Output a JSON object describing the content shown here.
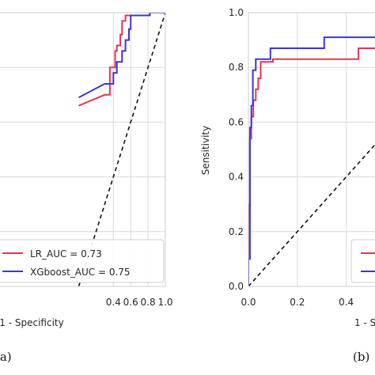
{
  "chart_data": [
    {
      "panel_label": "(a)",
      "type": "line",
      "xlabel": "1 - Specificity",
      "ylabel": "",
      "xlim": [
        -1.0,
        1.0
      ],
      "ylim": [
        0.0,
        1.0
      ],
      "x_ticks": [
        0.4,
        0.6,
        0.8,
        1.0
      ],
      "x_tick_labels": [
        "0.4",
        "0.6",
        "0.8",
        "1.0"
      ],
      "y_ticks": [],
      "grid": true,
      "legend_position": "lower-right",
      "series": [
        {
          "name": "LR_AUC = 0.73",
          "color": "#e8344e",
          "points": [
            [
              0.0,
              0.66
            ],
            [
              0.3,
              0.7
            ],
            [
              0.36,
              0.7
            ],
            [
              0.36,
              0.8
            ],
            [
              0.42,
              0.8
            ],
            [
              0.42,
              0.86
            ],
            [
              0.44,
              0.86
            ],
            [
              0.44,
              0.88
            ],
            [
              0.48,
              0.88
            ],
            [
              0.48,
              0.92
            ],
            [
              0.5,
              0.92
            ],
            [
              0.5,
              0.97
            ],
            [
              0.54,
              0.97
            ],
            [
              0.54,
              0.99
            ],
            [
              0.82,
              0.99
            ],
            [
              0.82,
              1.0
            ],
            [
              1.0,
              1.0
            ]
          ]
        },
        {
          "name": "XGboost_AUC = 0.75",
          "color": "#3a36d6",
          "points": [
            [
              0.0,
              0.69
            ],
            [
              0.3,
              0.74
            ],
            [
              0.4,
              0.74
            ],
            [
              0.4,
              0.78
            ],
            [
              0.44,
              0.78
            ],
            [
              0.44,
              0.82
            ],
            [
              0.5,
              0.82
            ],
            [
              0.5,
              0.86
            ],
            [
              0.54,
              0.86
            ],
            [
              0.54,
              0.9
            ],
            [
              0.58,
              0.9
            ],
            [
              0.58,
              0.94
            ],
            [
              0.6,
              0.94
            ],
            [
              0.6,
              0.99
            ],
            [
              0.82,
              0.99
            ],
            [
              0.82,
              1.0
            ],
            [
              1.0,
              1.0
            ]
          ]
        }
      ],
      "diagonal": {
        "style": "dashed",
        "color": "#111111",
        "points": [
          [
            0.0,
            0.0
          ],
          [
            1.0,
            1.0
          ]
        ]
      }
    },
    {
      "panel_label": "(b)",
      "type": "line",
      "xlabel": "1 - S",
      "ylabel": "Sensitivity",
      "xlim": [
        0.0,
        0.55
      ],
      "ylim": [
        0.0,
        1.0
      ],
      "x_ticks": [
        0.0,
        0.2,
        0.4
      ],
      "x_tick_labels": [
        "0.0",
        "0.2",
        "0.4"
      ],
      "y_ticks": [
        0.0,
        0.2,
        0.4,
        0.6,
        0.8,
        1.0
      ],
      "y_tick_labels": [
        "0.0",
        "0.2",
        "0.4",
        "0.6",
        "0.8",
        "1.0"
      ],
      "grid": true,
      "legend_position": "lower-right",
      "series": [
        {
          "name": "",
          "color": "#e8344e",
          "points": [
            [
              0.0,
              0.0
            ],
            [
              0.0,
              0.3
            ],
            [
              0.006,
              0.3
            ],
            [
              0.006,
              0.54
            ],
            [
              0.012,
              0.54
            ],
            [
              0.012,
              0.62
            ],
            [
              0.02,
              0.62
            ],
            [
              0.02,
              0.68
            ],
            [
              0.03,
              0.68
            ],
            [
              0.03,
              0.72
            ],
            [
              0.04,
              0.72
            ],
            [
              0.04,
              0.76
            ],
            [
              0.05,
              0.76
            ],
            [
              0.05,
              0.82
            ],
            [
              0.1,
              0.82
            ],
            [
              0.1,
              0.83
            ],
            [
              0.45,
              0.83
            ],
            [
              0.45,
              0.87
            ],
            [
              0.55,
              0.87
            ]
          ]
        },
        {
          "name": "",
          "color": "#3a36d6",
          "points": [
            [
              0.0,
              0.0
            ],
            [
              0.0,
              0.1
            ],
            [
              0.006,
              0.1
            ],
            [
              0.006,
              0.58
            ],
            [
              0.012,
              0.58
            ],
            [
              0.012,
              0.66
            ],
            [
              0.018,
              0.66
            ],
            [
              0.018,
              0.79
            ],
            [
              0.03,
              0.79
            ],
            [
              0.03,
              0.83
            ],
            [
              0.09,
              0.83
            ],
            [
              0.09,
              0.87
            ],
            [
              0.31,
              0.87
            ],
            [
              0.31,
              0.91
            ],
            [
              0.55,
              0.91
            ]
          ]
        }
      ],
      "diagonal": {
        "style": "dashed",
        "color": "#111111",
        "points": [
          [
            0.0,
            0.0
          ],
          [
            1.0,
            1.0
          ]
        ]
      }
    }
  ]
}
